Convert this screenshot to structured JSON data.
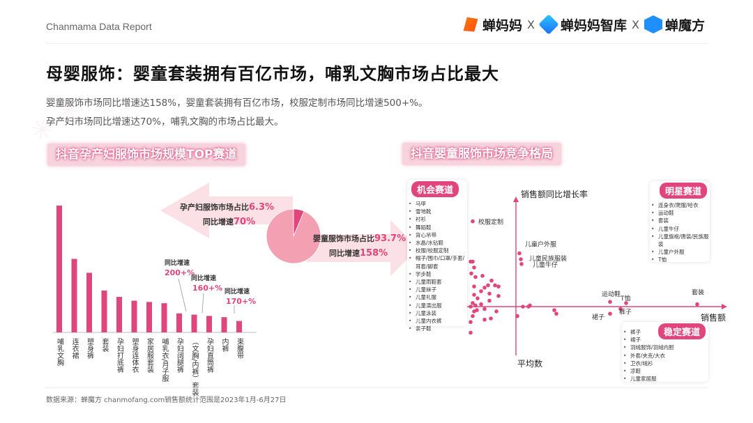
{
  "header": {
    "report_label": "Chanmama Data Report",
    "logos": [
      "蝉妈妈",
      "蝉妈妈智库",
      "蝉魔方"
    ],
    "separator": "X"
  },
  "title": "母婴服饰：婴童套装拥有百亿市场，哺乳文胸市场占比最大",
  "description": [
    "婴童服饰市场同比增速达158%，婴童套装拥有百亿市场，校服定制市场同比增速500+%。",
    "孕产妇市场同比增速达70%，哺乳文胸的市场占比最大。"
  ],
  "left_section": {
    "title": "抖音孕产妇服饰市场规模TOP赛道",
    "annotations": [
      {
        "label": "同比增速",
        "value": "200+%"
      },
      {
        "label": "同比增速",
        "value": "160+%"
      },
      {
        "label": "同比增速",
        "value": "170+%"
      }
    ]
  },
  "pie_callouts": {
    "maternal_share_label": "孕产妇服饰市场占比",
    "maternal_share_value": "6.3%",
    "maternal_growth_label": "同比增速",
    "maternal_growth_value": "70%",
    "infant_share_label": "婴童服饰市场占比",
    "infant_share_value": "93.7%",
    "infant_growth_label": "同比增速",
    "infant_growth_value": "158%"
  },
  "right_section": {
    "title": "抖音婴童服饰市场竞争格局",
    "y_axis_label": "销售额同比增长率",
    "x_axis_label": "销售额",
    "avg_label": "平均数",
    "point_labels": [
      "校服定制",
      "儿童户外服",
      "儿童民族服装",
      "儿童牛仔",
      "运动鞋",
      "T恤",
      "裤子",
      "裙子",
      "套装"
    ],
    "quadrants": {
      "opportunity": {
        "title": "机会赛道",
        "items": [
          "马甲",
          "雪地靴",
          "衬衫",
          "舞蹈鞋",
          "背心吊带",
          "水晶/水钻鞋",
          "校服/校服定制",
          "帽子/围巾/口罩/手套/耳套/脚套",
          "学步鞋",
          "儿童雨鞋套",
          "儿童袜子",
          "儿童礼服",
          "儿童演出服",
          "儿童泳装",
          "儿童内衣裤",
          "亲子鞋"
        ]
      },
      "star": {
        "title": "明星赛道",
        "items": [
          "连身衣/爬服/哈衣",
          "运动鞋",
          "套装",
          "儿童牛仔",
          "儿童旗袍/唐装/民族服装",
          "儿童户外服",
          "T恤"
        ]
      },
      "stable": {
        "title": "稳定赛道",
        "items": [
          "裤子",
          "裙子",
          "羽绒服饰/羽绒内胆",
          "外套/夹克/大衣",
          "卫衣/绒衫",
          "凉鞋",
          "儿童家居服"
        ]
      }
    }
  },
  "chart_data": [
    {
      "type": "bar",
      "title": "抖音孕产妇服饰市场规模TOP赛道",
      "categories": [
        "哺乳文胸",
        "连衣裙",
        "塑身裤",
        "套装",
        "孕妇打底裤",
        "塑身连体衣",
        "家居服套装",
        "哺乳衣/月子服",
        "孕妇阔腿裤",
        "（文胸/内裤）套装",
        "孕妇直筒裤",
        "内裤",
        "束腹带"
      ],
      "values": [
        100,
        58,
        47,
        33,
        28,
        25,
        24,
        23,
        15,
        14,
        13,
        12,
        9
      ],
      "ylim": [
        0,
        100
      ],
      "highlighted": [
        8,
        9,
        11
      ],
      "color": "#e0457b"
    },
    {
      "type": "pie",
      "categories": [
        "孕产妇服饰",
        "婴童服饰"
      ],
      "values": [
        6.3,
        93.7
      ],
      "colors": [
        "#e0457b",
        "#f4a0b3"
      ]
    },
    {
      "type": "scatter",
      "title": "抖音婴童服饰市场竞争格局",
      "xlabel": "销售额",
      "ylabel": "销售额同比增长率",
      "color": "#e0457b",
      "labeled_points": [
        {
          "label": "校服定制",
          "x": -62,
          "y": 72
        },
        {
          "label": "儿童户外服",
          "x": 5,
          "y": 45
        },
        {
          "label": "儿童民族服装",
          "x": 7,
          "y": 40
        },
        {
          "label": "儿童牛仔",
          "x": 8,
          "y": 36
        },
        {
          "label": "运动鞋",
          "x": 135,
          "y": 4
        },
        {
          "label": "T恤",
          "x": 158,
          "y": 3
        },
        {
          "label": "裤子",
          "x": 150,
          "y": -2
        },
        {
          "label": "裙子",
          "x": 135,
          "y": -6
        },
        {
          "label": "套装",
          "x": 260,
          "y": 2
        }
      ],
      "points": [
        {
          "x": -65,
          "y": 38
        },
        {
          "x": -62,
          "y": 38
        },
        {
          "x": -60,
          "y": 33
        },
        {
          "x": -64,
          "y": 28
        },
        {
          "x": -58,
          "y": 25
        },
        {
          "x": -48,
          "y": 26
        },
        {
          "x": -35,
          "y": 22
        },
        {
          "x": -30,
          "y": 18
        },
        {
          "x": -25,
          "y": 17
        },
        {
          "x": -40,
          "y": 18
        },
        {
          "x": -45,
          "y": 16
        },
        {
          "x": -60,
          "y": 17
        },
        {
          "x": -50,
          "y": 13
        },
        {
          "x": -60,
          "y": 10
        },
        {
          "x": -38,
          "y": 11
        },
        {
          "x": -25,
          "y": 9
        },
        {
          "x": -55,
          "y": 7
        },
        {
          "x": -62,
          "y": 3
        },
        {
          "x": -58,
          "y": 1
        },
        {
          "x": -50,
          "y": 2
        },
        {
          "x": -65,
          "y": 0
        },
        {
          "x": -56,
          "y": -3
        },
        {
          "x": -60,
          "y": -4
        },
        {
          "x": -45,
          "y": -2
        },
        {
          "x": -28,
          "y": -4
        },
        {
          "x": -62,
          "y": -8
        },
        {
          "x": -65,
          "y": -13
        },
        {
          "x": -45,
          "y": -11
        },
        {
          "x": -36,
          "y": -10
        },
        {
          "x": -65,
          "y": -22
        },
        {
          "x": 10,
          "y": 0
        },
        {
          "x": 18,
          "y": 0
        },
        {
          "x": 20,
          "y": 1
        },
        {
          "x": 55,
          "y": -3
        },
        {
          "x": 58,
          "y": -6
        },
        {
          "x": 2,
          "y": -8
        },
        {
          "x": -38,
          "y": 5
        }
      ]
    }
  ],
  "footer": {
    "source": "数据来源：蝉魔方 chanmofang.com",
    "range": "销售额统计范围是2023年1月-6月27日"
  }
}
